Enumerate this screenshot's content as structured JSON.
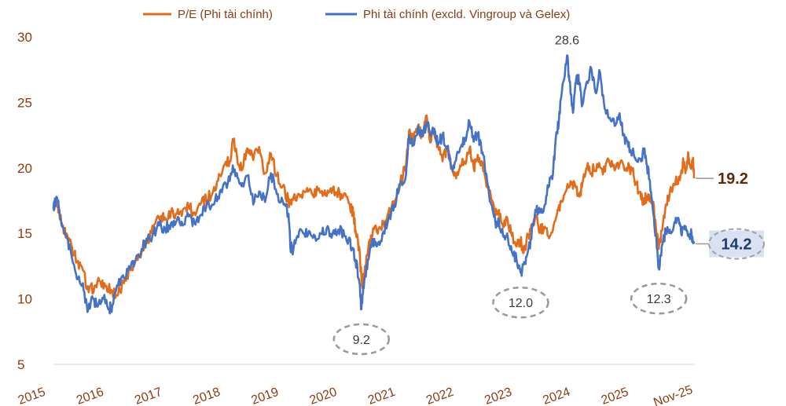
{
  "chart_data": {
    "type": "line",
    "title": "",
    "xlabel": "",
    "ylabel": "",
    "ylim": [
      5,
      30
    ],
    "yticks": [
      5,
      10,
      15,
      20,
      25,
      30
    ],
    "x_tick_labels": [
      "2015",
      "2016",
      "2017",
      "2018",
      "2019",
      "2020",
      "2021",
      "2022",
      "2023",
      "2024",
      "2025",
      "Nov-25"
    ],
    "x_unit": "year",
    "x_range": [
      2015.0,
      2025.9
    ],
    "grid": false,
    "legend_position": "top-center",
    "series": [
      {
        "name": "P/E (Phi tài chính)",
        "color": "#e36c1a",
        "points": [
          [
            2015.0,
            17.0
          ],
          [
            2015.05,
            17.6
          ],
          [
            2015.1,
            16.6
          ],
          [
            2015.15,
            15.6
          ],
          [
            2015.22,
            15.0
          ],
          [
            2015.3,
            14.2
          ],
          [
            2015.4,
            12.8
          ],
          [
            2015.5,
            12.2
          ],
          [
            2015.6,
            10.5
          ],
          [
            2015.7,
            11.0
          ],
          [
            2015.8,
            11.3
          ],
          [
            2015.9,
            11.0
          ],
          [
            2016.0,
            10.6
          ],
          [
            2016.1,
            10.3
          ],
          [
            2016.2,
            11.2
          ],
          [
            2016.3,
            12.2
          ],
          [
            2016.4,
            13.0
          ],
          [
            2016.5,
            13.6
          ],
          [
            2016.6,
            14.5
          ],
          [
            2016.7,
            15.5
          ],
          [
            2016.8,
            16.1
          ],
          [
            2016.9,
            16.2
          ],
          [
            2017.0,
            16.6
          ],
          [
            2017.1,
            16.5
          ],
          [
            2017.2,
            16.8
          ],
          [
            2017.3,
            17.0
          ],
          [
            2017.4,
            16.6
          ],
          [
            2017.5,
            17.2
          ],
          [
            2017.6,
            17.6
          ],
          [
            2017.7,
            18.0
          ],
          [
            2017.8,
            19.0
          ],
          [
            2017.9,
            20.2
          ],
          [
            2018.0,
            20.5
          ],
          [
            2018.05,
            22.2
          ],
          [
            2018.12,
            21.0
          ],
          [
            2018.2,
            19.8
          ],
          [
            2018.3,
            21.5
          ],
          [
            2018.4,
            20.6
          ],
          [
            2018.5,
            21.6
          ],
          [
            2018.6,
            19.6
          ],
          [
            2018.7,
            21.1
          ],
          [
            2018.8,
            19.4
          ],
          [
            2018.9,
            18.6
          ],
          [
            2019.0,
            17.5
          ],
          [
            2019.05,
            17.2
          ],
          [
            2019.1,
            18.0
          ],
          [
            2019.2,
            17.8
          ],
          [
            2019.3,
            18.2
          ],
          [
            2019.4,
            18.0
          ],
          [
            2019.5,
            18.3
          ],
          [
            2019.6,
            18.0
          ],
          [
            2019.7,
            18.2
          ],
          [
            2019.8,
            18.1
          ],
          [
            2019.9,
            18.0
          ],
          [
            2020.0,
            17.8
          ],
          [
            2020.05,
            16.9
          ],
          [
            2020.1,
            16.6
          ],
          [
            2020.15,
            14.8
          ],
          [
            2020.2,
            14.0
          ],
          [
            2020.25,
            11.0
          ],
          [
            2020.3,
            12.5
          ],
          [
            2020.38,
            14.5
          ],
          [
            2020.45,
            15.3
          ],
          [
            2020.55,
            15.5
          ],
          [
            2020.65,
            16.0
          ],
          [
            2020.75,
            16.8
          ],
          [
            2020.85,
            18.0
          ],
          [
            2020.95,
            19.5
          ],
          [
            2021.0,
            20.2
          ],
          [
            2021.05,
            22.8
          ],
          [
            2021.12,
            22.0
          ],
          [
            2021.2,
            23.0
          ],
          [
            2021.28,
            22.5
          ],
          [
            2021.35,
            24.0
          ],
          [
            2021.4,
            22.2
          ],
          [
            2021.48,
            22.6
          ],
          [
            2021.55,
            21.5
          ],
          [
            2021.62,
            20.5
          ],
          [
            2021.7,
            21.5
          ],
          [
            2021.78,
            20.0
          ],
          [
            2021.85,
            19.2
          ],
          [
            2021.92,
            20.2
          ],
          [
            2022.0,
            20.5
          ],
          [
            2022.08,
            21.5
          ],
          [
            2022.15,
            20.0
          ],
          [
            2022.22,
            21.0
          ],
          [
            2022.3,
            20.4
          ],
          [
            2022.38,
            18.5
          ],
          [
            2022.45,
            17.6
          ],
          [
            2022.52,
            16.5
          ],
          [
            2022.58,
            16.8
          ],
          [
            2022.65,
            15.5
          ],
          [
            2022.72,
            16.2
          ],
          [
            2022.8,
            14.8
          ],
          [
            2022.88,
            14.0
          ],
          [
            2022.95,
            14.5
          ],
          [
            2023.0,
            13.5
          ],
          [
            2023.05,
            14.5
          ],
          [
            2023.12,
            15.2
          ],
          [
            2023.2,
            16.4
          ],
          [
            2023.28,
            15.2
          ],
          [
            2023.35,
            15.5
          ],
          [
            2023.42,
            14.8
          ],
          [
            2023.5,
            15.3
          ],
          [
            2023.58,
            16.8
          ],
          [
            2023.65,
            17.4
          ],
          [
            2023.72,
            18.2
          ],
          [
            2023.8,
            19.0
          ],
          [
            2023.88,
            18.6
          ],
          [
            2023.95,
            17.8
          ],
          [
            2024.0,
            18.8
          ],
          [
            2024.08,
            20.0
          ],
          [
            2024.15,
            19.6
          ],
          [
            2024.25,
            20.3
          ],
          [
            2024.35,
            19.5
          ],
          [
            2024.45,
            20.6
          ],
          [
            2024.55,
            19.8
          ],
          [
            2024.65,
            20.5
          ],
          [
            2024.75,
            20.0
          ],
          [
            2024.85,
            19.8
          ],
          [
            2024.92,
            18.8
          ],
          [
            2025.0,
            17.6
          ],
          [
            2025.05,
            17.5
          ],
          [
            2025.12,
            18.0
          ],
          [
            2025.2,
            17.4
          ],
          [
            2025.25,
            15.5
          ],
          [
            2025.3,
            13.8
          ],
          [
            2025.35,
            15.2
          ],
          [
            2025.42,
            17.2
          ],
          [
            2025.48,
            17.8
          ],
          [
            2025.55,
            18.8
          ],
          [
            2025.62,
            19.0
          ],
          [
            2025.68,
            19.6
          ],
          [
            2025.72,
            20.5
          ],
          [
            2025.76,
            19.8
          ],
          [
            2025.8,
            21.2
          ],
          [
            2025.84,
            20.0
          ],
          [
            2025.88,
            20.6
          ],
          [
            2025.9,
            19.2
          ]
        ]
      },
      {
        "name": "Phi tài chính (excld. Vingroup và Gelex)",
        "color": "#4472c4",
        "points": [
          [
            2015.0,
            16.8
          ],
          [
            2015.05,
            17.8
          ],
          [
            2015.1,
            16.8
          ],
          [
            2015.15,
            15.5
          ],
          [
            2015.22,
            14.8
          ],
          [
            2015.3,
            13.5
          ],
          [
            2015.4,
            11.5
          ],
          [
            2015.5,
            11.2
          ],
          [
            2015.58,
            9.0
          ],
          [
            2015.66,
            10.2
          ],
          [
            2015.75,
            9.4
          ],
          [
            2015.85,
            10.0
          ],
          [
            2015.95,
            9.2
          ],
          [
            2016.0,
            9.5
          ],
          [
            2016.1,
            11.0
          ],
          [
            2016.2,
            11.6
          ],
          [
            2016.3,
            12.3
          ],
          [
            2016.4,
            13.0
          ],
          [
            2016.5,
            13.8
          ],
          [
            2016.6,
            14.5
          ],
          [
            2016.7,
            15.0
          ],
          [
            2016.8,
            15.6
          ],
          [
            2016.9,
            15.3
          ],
          [
            2017.0,
            15.8
          ],
          [
            2017.1,
            16.0
          ],
          [
            2017.2,
            15.6
          ],
          [
            2017.3,
            16.3
          ],
          [
            2017.4,
            15.8
          ],
          [
            2017.5,
            16.4
          ],
          [
            2017.6,
            17.0
          ],
          [
            2017.7,
            17.2
          ],
          [
            2017.8,
            17.8
          ],
          [
            2017.9,
            18.8
          ],
          [
            2018.0,
            19.0
          ],
          [
            2018.05,
            20.2
          ],
          [
            2018.12,
            19.6
          ],
          [
            2018.2,
            18.6
          ],
          [
            2018.3,
            19.4
          ],
          [
            2018.4,
            17.2
          ],
          [
            2018.5,
            18.2
          ],
          [
            2018.6,
            17.4
          ],
          [
            2018.7,
            19.6
          ],
          [
            2018.8,
            18.0
          ],
          [
            2018.9,
            17.5
          ],
          [
            2019.0,
            16.5
          ],
          [
            2019.03,
            14.0
          ],
          [
            2019.08,
            13.7
          ],
          [
            2019.15,
            14.8
          ],
          [
            2019.25,
            15.0
          ],
          [
            2019.35,
            15.2
          ],
          [
            2019.45,
            14.8
          ],
          [
            2019.55,
            15.0
          ],
          [
            2019.65,
            15.4
          ],
          [
            2019.75,
            15.0
          ],
          [
            2019.85,
            15.3
          ],
          [
            2019.95,
            14.8
          ],
          [
            2020.02,
            14.5
          ],
          [
            2020.08,
            13.8
          ],
          [
            2020.14,
            13.0
          ],
          [
            2020.2,
            11.5
          ],
          [
            2020.24,
            9.2
          ],
          [
            2020.28,
            10.8
          ],
          [
            2020.35,
            13.0
          ],
          [
            2020.42,
            14.4
          ],
          [
            2020.5,
            14.0
          ],
          [
            2020.6,
            15.0
          ],
          [
            2020.7,
            16.2
          ],
          [
            2020.8,
            17.2
          ],
          [
            2020.9,
            18.8
          ],
          [
            2021.0,
            19.5
          ],
          [
            2021.05,
            22.5
          ],
          [
            2021.12,
            21.8
          ],
          [
            2021.2,
            23.2
          ],
          [
            2021.28,
            22.4
          ],
          [
            2021.35,
            23.5
          ],
          [
            2021.4,
            22.8
          ],
          [
            2021.48,
            23.0
          ],
          [
            2021.55,
            21.8
          ],
          [
            2021.62,
            22.5
          ],
          [
            2021.7,
            21.6
          ],
          [
            2021.78,
            20.0
          ],
          [
            2021.85,
            20.6
          ],
          [
            2021.92,
            21.5
          ],
          [
            2022.0,
            22.3
          ],
          [
            2022.08,
            23.5
          ],
          [
            2022.15,
            22.0
          ],
          [
            2022.22,
            22.6
          ],
          [
            2022.3,
            21.2
          ],
          [
            2022.38,
            19.0
          ],
          [
            2022.45,
            17.2
          ],
          [
            2022.52,
            15.8
          ],
          [
            2022.58,
            16.0
          ],
          [
            2022.65,
            14.8
          ],
          [
            2022.72,
            15.0
          ],
          [
            2022.8,
            13.6
          ],
          [
            2022.88,
            13.0
          ],
          [
            2022.95,
            12.0
          ],
          [
            2023.0,
            12.6
          ],
          [
            2023.05,
            13.2
          ],
          [
            2023.12,
            14.5
          ],
          [
            2023.2,
            16.8
          ],
          [
            2023.28,
            16.6
          ],
          [
            2023.35,
            17.0
          ],
          [
            2023.42,
            18.5
          ],
          [
            2023.5,
            19.6
          ],
          [
            2023.55,
            22.4
          ],
          [
            2023.6,
            23.5
          ],
          [
            2023.65,
            25.8
          ],
          [
            2023.7,
            27.0
          ],
          [
            2023.74,
            28.6
          ],
          [
            2023.78,
            26.6
          ],
          [
            2023.84,
            24.2
          ],
          [
            2023.9,
            27.0
          ],
          [
            2023.95,
            26.5
          ],
          [
            2024.0,
            24.8
          ],
          [
            2024.08,
            26.6
          ],
          [
            2024.15,
            27.6
          ],
          [
            2024.22,
            25.8
          ],
          [
            2024.3,
            27.3
          ],
          [
            2024.38,
            24.5
          ],
          [
            2024.45,
            23.8
          ],
          [
            2024.55,
            23.2
          ],
          [
            2024.62,
            24.0
          ],
          [
            2024.7,
            22.6
          ],
          [
            2024.78,
            21.6
          ],
          [
            2024.85,
            21.2
          ],
          [
            2024.92,
            20.6
          ],
          [
            2025.0,
            20.5
          ],
          [
            2025.05,
            21.5
          ],
          [
            2025.1,
            20.2
          ],
          [
            2025.15,
            19.0
          ],
          [
            2025.2,
            16.8
          ],
          [
            2025.25,
            14.8
          ],
          [
            2025.3,
            12.3
          ],
          [
            2025.35,
            14.0
          ],
          [
            2025.42,
            15.2
          ],
          [
            2025.5,
            15.0
          ],
          [
            2025.58,
            15.8
          ],
          [
            2025.63,
            16.2
          ],
          [
            2025.68,
            15.0
          ],
          [
            2025.75,
            15.3
          ],
          [
            2025.8,
            14.8
          ],
          [
            2025.86,
            14.9
          ],
          [
            2025.9,
            14.2
          ]
        ]
      }
    ],
    "annotations": [
      {
        "text": "9.2",
        "x": 2020.24,
        "y": 9.2,
        "note_side": "below"
      },
      {
        "text": "12.0",
        "x": 2022.95,
        "y": 12.0,
        "note_side": "below"
      },
      {
        "text": "12.3",
        "x": 2025.3,
        "y": 12.3,
        "note_side": "below"
      },
      {
        "text": "28.6",
        "x": 2023.74,
        "y": 28.6,
        "note_side": "above"
      }
    ],
    "end_labels": [
      {
        "text": "19.2",
        "series": 0,
        "color": "#5a2a0a"
      },
      {
        "text": "14.2",
        "series": 1,
        "color": "#1f3b6b",
        "highlight": "#d9e1f2"
      }
    ]
  }
}
